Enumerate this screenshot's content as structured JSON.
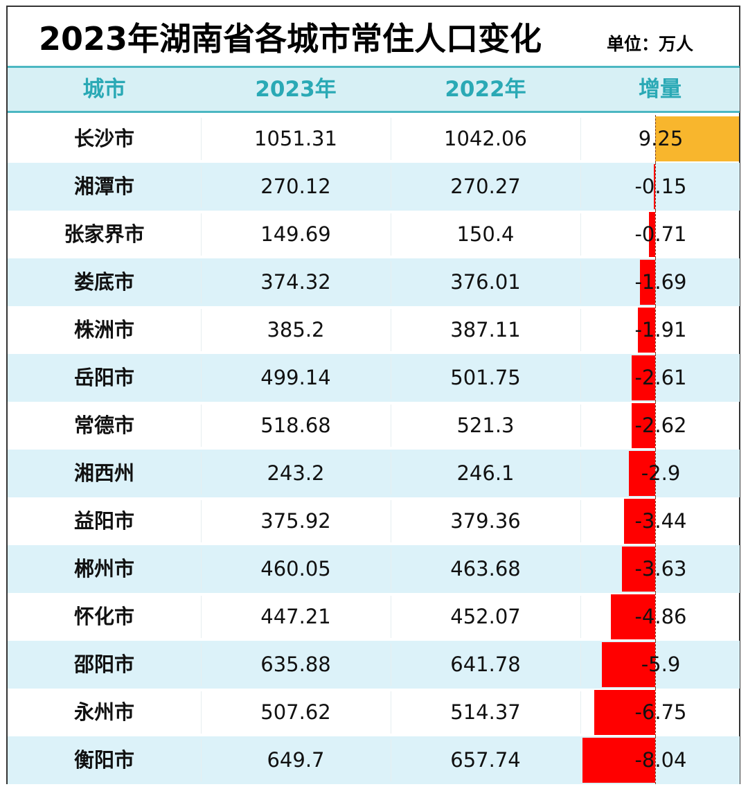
{
  "title": "2023年湖南省各城市常住人口变化",
  "unit": "单位：万人",
  "colors": {
    "header_text": "#2aa9b5",
    "header_bg": "#d7f0f5",
    "positive_bar": "#f8b62d",
    "negative_bar": "#ff0000",
    "alt_row": "#dcf2f9"
  },
  "chart_data": {
    "type": "table",
    "columns": [
      "城市",
      "2023年",
      "2022年",
      "增量"
    ],
    "data_bars": "增量 column, positive orange, negative red",
    "rows": [
      [
        "长沙市",
        "1051.31",
        "1042.06",
        "9.25"
      ],
      [
        "湘潭市",
        "270.12",
        "270.27",
        "-0.15"
      ],
      [
        "张家界市",
        "149.69",
        "150.4",
        "-0.71"
      ],
      [
        "娄底市",
        "374.32",
        "376.01",
        "-1.69"
      ],
      [
        "株洲市",
        "385.2",
        "387.11",
        "-1.91"
      ],
      [
        "岳阳市",
        "499.14",
        "501.75",
        "-2.61"
      ],
      [
        "常德市",
        "518.68",
        "521.3",
        "-2.62"
      ],
      [
        "湘西州",
        "243.2",
        "246.1",
        "-2.9"
      ],
      [
        "益阳市",
        "375.92",
        "379.36",
        "-3.44"
      ],
      [
        "郴州市",
        "460.05",
        "463.68",
        "-3.63"
      ],
      [
        "怀化市",
        "447.21",
        "452.07",
        "-4.86"
      ],
      [
        "邵阳市",
        "635.88",
        "641.78",
        "-5.9"
      ],
      [
        "永州市",
        "507.62",
        "514.37",
        "-6.75"
      ],
      [
        "衡阳市",
        "649.7",
        "657.74",
        "-8.04"
      ]
    ]
  }
}
